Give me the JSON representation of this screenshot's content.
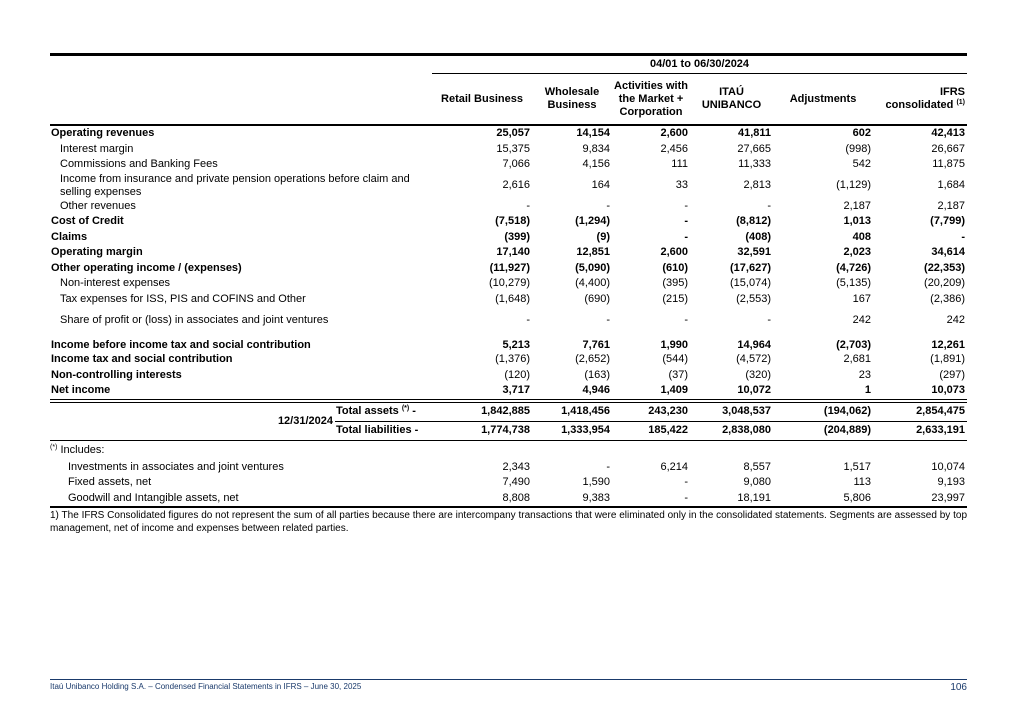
{
  "table": {
    "period": "04/01 to 06/30/2024",
    "columns": [
      {
        "label": "Retail Business"
      },
      {
        "label": "Wholesale Business"
      },
      {
        "label": "Activities with the Market + Corporation"
      },
      {
        "label": "ITAÚ UNIBANCO"
      },
      {
        "label": "Adjustments"
      },
      {
        "label": "IFRS consolidated",
        "note": "(1)"
      }
    ],
    "rows": [
      {
        "label": "Operating revenues",
        "style": "bold",
        "values": [
          "25,057",
          "14,154",
          "2,600",
          "41,811",
          "602",
          "42,413"
        ]
      },
      {
        "label": "Interest margin",
        "style": "indent",
        "values": [
          "15,375",
          "9,834",
          "2,456",
          "27,665",
          "(998)",
          "26,667"
        ]
      },
      {
        "label": "Commissions and Banking Fees",
        "style": "indent",
        "values": [
          "7,066",
          "4,156",
          "111",
          "11,333",
          "542",
          "11,875"
        ]
      },
      {
        "label": "Income from insurance and private pension operations before claim and selling expenses",
        "style": "indent",
        "values": [
          "2,616",
          "164",
          "33",
          "2,813",
          "(1,129)",
          "1,684"
        ]
      },
      {
        "label": "Other revenues",
        "style": "indent",
        "values": [
          "-",
          "-",
          "-",
          "-",
          "2,187",
          "2,187"
        ]
      },
      {
        "label": "Cost of Credit",
        "style": "bold",
        "values": [
          "(7,518)",
          "(1,294)",
          "-",
          "(8,812)",
          "1,013",
          "(7,799)"
        ]
      },
      {
        "label": "Claims",
        "style": "bold",
        "values": [
          "(399)",
          "(9)",
          "-",
          "(408)",
          "408",
          "-"
        ]
      },
      {
        "label": "Operating margin",
        "style": "bold",
        "values": [
          "17,140",
          "12,851",
          "2,600",
          "32,591",
          "2,023",
          "34,614"
        ]
      },
      {
        "label": "Other operating income / (expenses)",
        "style": "bold",
        "values": [
          "(11,927)",
          "(5,090)",
          "(610)",
          "(17,627)",
          "(4,726)",
          "(22,353)"
        ]
      },
      {
        "label": "Non-interest expenses",
        "style": "indent",
        "values": [
          "(10,279)",
          "(4,400)",
          "(395)",
          "(15,074)",
          "(5,135)",
          "(20,209)"
        ]
      },
      {
        "label": "Tax expenses for ISS, PIS and COFINS and Other",
        "style": "indent",
        "values": [
          "(1,648)",
          "(690)",
          "(215)",
          "(2,553)",
          "167",
          "(2,386)"
        ]
      },
      {
        "label": "Share of profit or (loss) in associates and joint ventures",
        "style": "indent",
        "values": [
          "-",
          "-",
          "-",
          "-",
          "242",
          "242"
        ]
      },
      {
        "label": "Income before income tax and social contribution",
        "style": "bold",
        "values": [
          "5,213",
          "7,761",
          "1,990",
          "14,964",
          "(2,703)",
          "12,261"
        ]
      },
      {
        "label": "Income tax and social contribution",
        "style": "label-bold",
        "values": [
          "(1,376)",
          "(2,652)",
          "(544)",
          "(4,572)",
          "2,681",
          "(1,891)"
        ]
      },
      {
        "label": "Non-controlling interests",
        "style": "label-bold",
        "values": [
          "(120)",
          "(163)",
          "(37)",
          "(320)",
          "23",
          "(297)"
        ]
      },
      {
        "label": "Net income",
        "style": "bold",
        "values": [
          "3,717",
          "4,946",
          "1,409",
          "10,072",
          "1",
          "10,073"
        ]
      }
    ]
  },
  "balance": {
    "date": "12/31/2024",
    "rows": [
      {
        "label": "Total assets",
        "note": "(*)",
        "suffix": "-",
        "values": [
          "1,842,885",
          "1,418,456",
          "243,230",
          "3,048,537",
          "(194,062)",
          "2,854,475"
        ]
      },
      {
        "label": "Total liabilities",
        "suffix": "-",
        "values": [
          "1,774,738",
          "1,333,954",
          "185,422",
          "2,838,080",
          "(204,889)",
          "2,633,191"
        ]
      }
    ]
  },
  "includes": {
    "note": "(*)",
    "label": "Includes:",
    "rows": [
      {
        "label": "Investments in associates and joint ventures",
        "values": [
          "2,343",
          "-",
          "6,214",
          "8,557",
          "1,517",
          "10,074"
        ]
      },
      {
        "label": "Fixed assets, net",
        "values": [
          "7,490",
          "1,590",
          "-",
          "9,080",
          "113",
          "9,193"
        ]
      },
      {
        "label": "Goodwill and Intangible assets, net",
        "values": [
          "8,808",
          "9,383",
          "-",
          "18,191",
          "5,806",
          "23,997"
        ]
      }
    ]
  },
  "footnote": "1) The IFRS Consolidated figures do not represent the sum of all parties because there are intercompany transactions that were eliminated only in the consolidated statements. Segments are assessed by top management, net of income and expenses between related parties.",
  "footer": {
    "text": "Itaú Unibanco Holding S.A. – Condensed Financial Statements in IFRS – June 30, 2025",
    "page": "106"
  }
}
